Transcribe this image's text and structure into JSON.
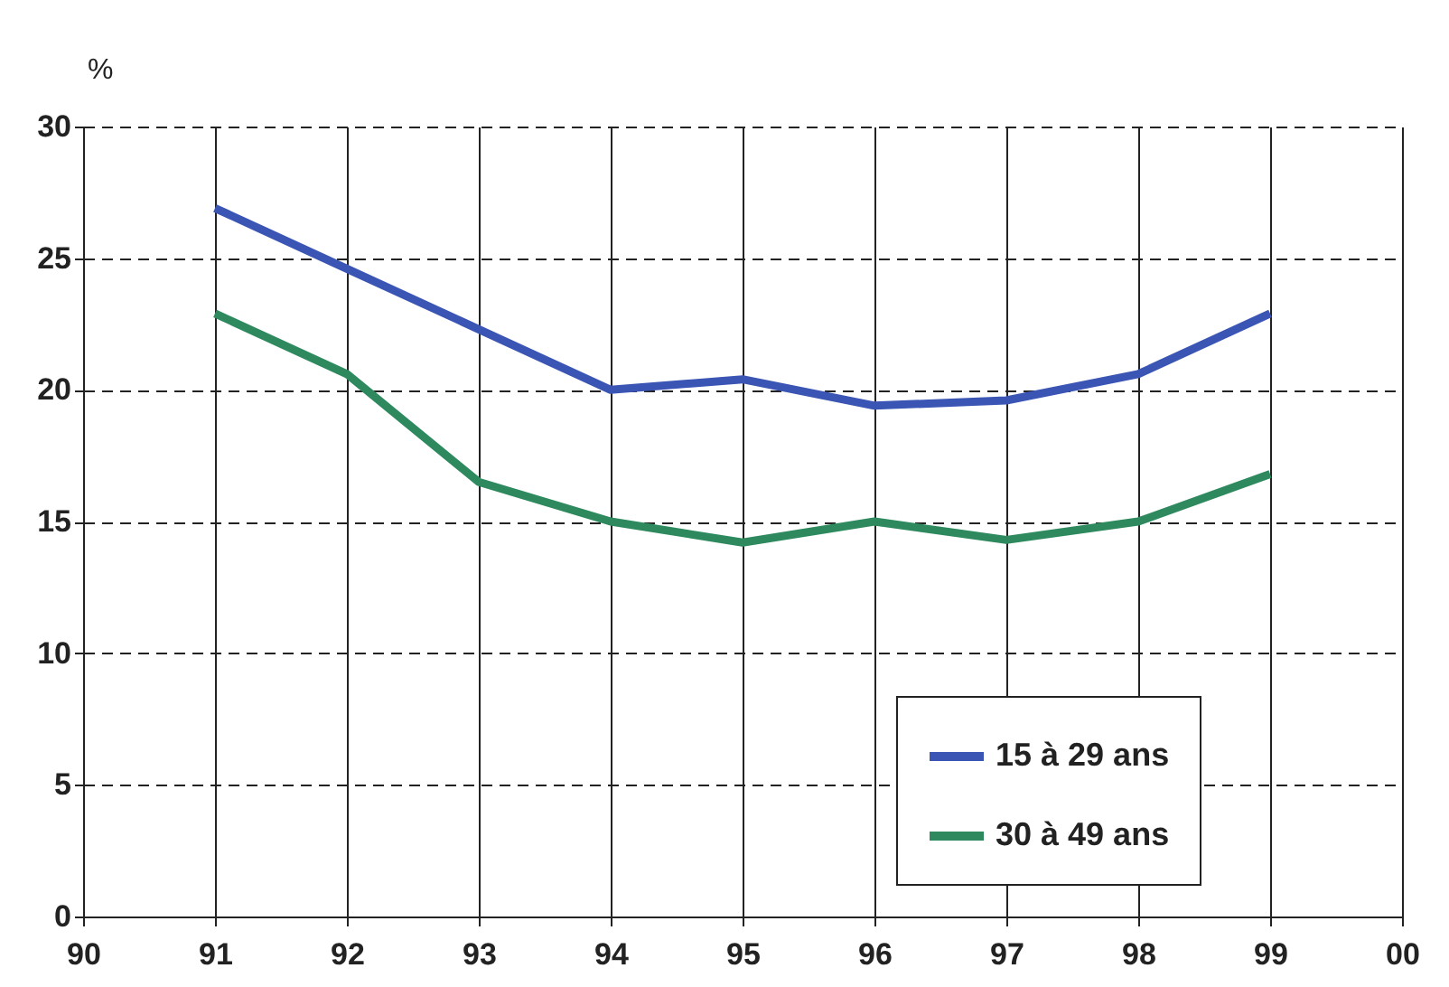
{
  "chart_data": {
    "type": "line",
    "ylabel": "%",
    "categories": [
      "90",
      "91",
      "92",
      "93",
      "94",
      "95",
      "96",
      "97",
      "98",
      "99",
      "00"
    ],
    "series": [
      {
        "name": "15 à 29 ans",
        "color": "#3a55b4",
        "values": [
          null,
          26.9,
          24.6,
          22.3,
          20.0,
          20.4,
          19.4,
          19.6,
          20.6,
          22.9,
          null
        ]
      },
      {
        "name": "30 à 49 ans",
        "color": "#2e8a5e",
        "values": [
          null,
          22.9,
          20.6,
          16.5,
          15.0,
          14.2,
          15.0,
          14.3,
          15.0,
          16.8,
          null
        ]
      }
    ],
    "ylim": [
      0,
      30
    ],
    "yticks": [
      0,
      5,
      10,
      15,
      20,
      25,
      30
    ],
    "grid": true,
    "legend": "bottom right",
    "marker": "none",
    "line_style": "solid"
  }
}
